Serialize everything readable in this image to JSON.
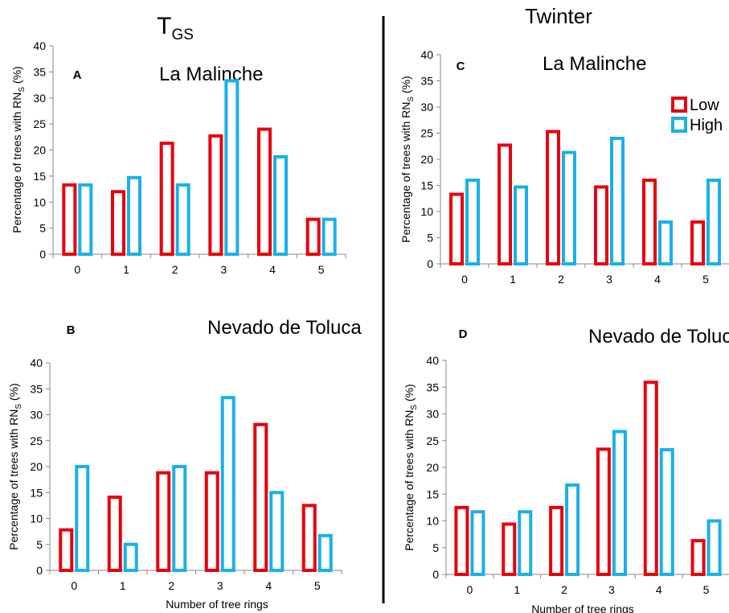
{
  "headers": {
    "left": {
      "main": "T",
      "sub": "GS"
    },
    "right": "Twinter"
  },
  "shared": {
    "ylabel_prefix": "Percentage of trees with RN",
    "ylabel_sub": "S",
    "ylabel_suffix": " (%)",
    "xlabel": "Number of tree rings"
  },
  "legend": {
    "items": [
      "Low",
      "High"
    ]
  },
  "colors": {
    "low": "#e8000d",
    "high": "#1ab0e8",
    "axis": "#888888",
    "text": "#000000"
  },
  "chart_data": [
    {
      "type": "bar",
      "panel_letter": "A",
      "title": "La Malinche",
      "categories": [
        "0",
        "1",
        "2",
        "3",
        "4",
        "5"
      ],
      "series": [
        {
          "name": "Low",
          "values": [
            13.3,
            12.0,
            21.3,
            22.7,
            24.0,
            6.7
          ]
        },
        {
          "name": "High",
          "values": [
            13.3,
            14.7,
            13.3,
            33.3,
            18.7,
            6.7
          ]
        }
      ],
      "ylim": [
        0,
        40
      ],
      "yticks": [
        "0",
        "5",
        "10",
        "15",
        "20",
        "25",
        "30",
        "35",
        "40"
      ]
    },
    {
      "type": "bar",
      "panel_letter": "B",
      "title": "Nevado de Toluca",
      "categories": [
        "0",
        "1",
        "2",
        "3",
        "4",
        "5"
      ],
      "series": [
        {
          "name": "Low",
          "values": [
            7.8,
            14.1,
            18.8,
            18.8,
            28.1,
            12.5
          ]
        },
        {
          "name": "High",
          "values": [
            20.0,
            5.0,
            20.0,
            33.3,
            15.0,
            6.7
          ]
        }
      ],
      "ylim": [
        0,
        40
      ],
      "yticks": [
        "0",
        "5",
        "10",
        "15",
        "20",
        "25",
        "30",
        "35",
        "40"
      ]
    },
    {
      "type": "bar",
      "panel_letter": "C",
      "title": "La Malinche",
      "categories": [
        "0",
        "1",
        "2",
        "3",
        "4",
        "5"
      ],
      "series": [
        {
          "name": "Low",
          "values": [
            13.3,
            22.7,
            25.3,
            14.7,
            16.0,
            8.0
          ]
        },
        {
          "name": "High",
          "values": [
            16.0,
            14.7,
            21.3,
            24.0,
            8.0,
            16.0
          ]
        }
      ],
      "ylim": [
        0,
        40
      ],
      "yticks": [
        "0",
        "5",
        "10",
        "15",
        "20",
        "25",
        "30",
        "35",
        "40"
      ],
      "legend": "top-right"
    },
    {
      "type": "bar",
      "panel_letter": "D",
      "title": "Nevado de Toluca",
      "categories": [
        "0",
        "1",
        "2",
        "3",
        "4",
        "5"
      ],
      "series": [
        {
          "name": "Low",
          "values": [
            12.5,
            9.4,
            12.5,
            23.4,
            35.9,
            6.3
          ]
        },
        {
          "name": "High",
          "values": [
            11.7,
            11.7,
            16.7,
            26.7,
            23.3,
            10.0
          ]
        }
      ],
      "ylim": [
        0,
        40
      ],
      "yticks": [
        "0",
        "5",
        "10",
        "15",
        "20",
        "25",
        "30",
        "35",
        "40"
      ]
    }
  ]
}
